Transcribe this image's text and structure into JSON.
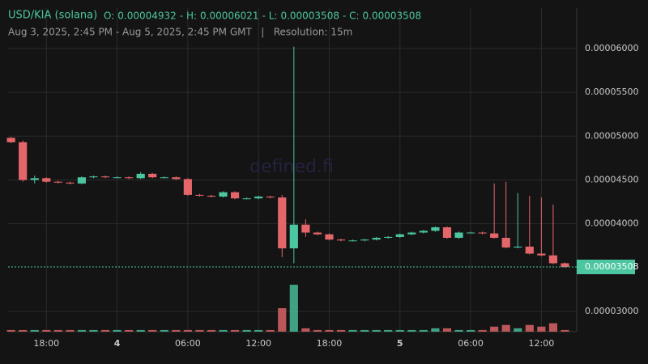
{
  "chart_data": {
    "type": "candlestick",
    "title": "USD/KIA (solana)",
    "ohlc": [
      {
        "label": "O:",
        "value": 4.932e-05
      },
      {
        "label": "- H:",
        "value": 6.021e-05
      },
      {
        "label": "- L:",
        "value": 3.508e-05
      },
      {
        "label": "- C:",
        "value": 3.508e-05
      }
    ],
    "subtitle": "Aug 3, 2025, 2:45 PM - Aug 5, 2025, 2:45 PM GMT   |   Resolution: 15m",
    "watermark": "defined.fi",
    "up_color": "#4bc6a0",
    "down_color": "#e5666a",
    "x": [
      15,
      16,
      17,
      18,
      19,
      20,
      21,
      22,
      23,
      24,
      25,
      26,
      27,
      28,
      29,
      30,
      31,
      32,
      33,
      34,
      35,
      36,
      37,
      38,
      39,
      40,
      41,
      42,
      43,
      44,
      45,
      46,
      47,
      48,
      49,
      50,
      51,
      52,
      53,
      54,
      55,
      56,
      57,
      58,
      59,
      60,
      61,
      62
    ],
    "open": [
      4.98e-05,
      4.93e-05,
      4.5e-05,
      4.52e-05,
      4.48e-05,
      4.47e-05,
      4.46e-05,
      4.53e-05,
      4.54e-05,
      4.53e-05,
      4.53e-05,
      4.52e-05,
      4.57e-05,
      4.53e-05,
      4.53e-05,
      4.51e-05,
      4.33e-05,
      4.32e-05,
      4.31e-05,
      4.36e-05,
      4.29e-05,
      4.29e-05,
      4.31e-05,
      4.3e-05,
      3.72e-05,
      3.99e-05,
      3.9e-05,
      3.88e-05,
      3.82e-05,
      3.81e-05,
      3.81e-05,
      3.82e-05,
      3.84e-05,
      3.85e-05,
      3.88e-05,
      3.9e-05,
      3.92e-05,
      3.96e-05,
      3.84e-05,
      3.9e-05,
      3.9e-05,
      3.89e-05,
      3.84e-05,
      3.73e-05,
      3.74e-05,
      3.66e-05,
      3.64e-05,
      3.55e-05
    ],
    "close": [
      4.93e-05,
      4.5e-05,
      4.52e-05,
      4.48e-05,
      4.47e-05,
      4.46e-05,
      4.53e-05,
      4.54e-05,
      4.53e-05,
      4.53e-05,
      4.52e-05,
      4.57e-05,
      4.53e-05,
      4.53e-05,
      4.51e-05,
      4.33e-05,
      4.32e-05,
      4.31e-05,
      4.36e-05,
      4.29e-05,
      4.29e-05,
      4.31e-05,
      4.3e-05,
      3.72e-05,
      3.99e-05,
      3.9e-05,
      3.88e-05,
      3.82e-05,
      3.81e-05,
      3.81e-05,
      3.82e-05,
      3.84e-05,
      3.85e-05,
      3.88e-05,
      3.9e-05,
      3.92e-05,
      3.96e-05,
      3.84e-05,
      3.9e-05,
      3.9e-05,
      3.89e-05,
      3.84e-05,
      3.73e-05,
      3.74e-05,
      3.66e-05,
      3.64e-05,
      3.55e-05,
      3.508e-05
    ],
    "high": [
      4.99e-05,
      4.95e-05,
      4.55e-05,
      4.53e-05,
      4.49e-05,
      4.48e-05,
      4.54e-05,
      4.55e-05,
      4.55e-05,
      4.54e-05,
      4.54e-05,
      4.59e-05,
      4.58e-05,
      4.54e-05,
      4.54e-05,
      4.52e-05,
      4.34e-05,
      4.33e-05,
      4.37e-05,
      4.37e-05,
      4.3e-05,
      4.32e-05,
      4.32e-05,
      4.33e-05,
      6.021e-05,
      4.05e-05,
      3.91e-05,
      3.89e-05,
      3.83e-05,
      3.82e-05,
      3.83e-05,
      3.85e-05,
      3.86e-05,
      3.89e-05,
      3.91e-05,
      3.93e-05,
      3.97e-05,
      3.97e-05,
      3.91e-05,
      3.91e-05,
      3.91e-05,
      4.46e-05,
      4.48e-05,
      4.35e-05,
      4.32e-05,
      4.3e-05,
      4.22e-05,
      3.56e-05
    ],
    "low": [
      4.92e-05,
      4.48e-05,
      4.46e-05,
      4.47e-05,
      4.46e-05,
      4.45e-05,
      4.45e-05,
      4.52e-05,
      4.52e-05,
      4.52e-05,
      4.51e-05,
      4.51e-05,
      4.52e-05,
      4.52e-05,
      4.5e-05,
      4.32e-05,
      4.31e-05,
      4.3e-05,
      4.3e-05,
      4.28e-05,
      4.28e-05,
      4.28e-05,
      4.29e-05,
      3.62e-05,
      3.55e-05,
      3.85e-05,
      3.87e-05,
      3.81e-05,
      3.8e-05,
      3.8e-05,
      3.8e-05,
      3.81e-05,
      3.83e-05,
      3.84e-05,
      3.87e-05,
      3.89e-05,
      3.91e-05,
      3.83e-05,
      3.83e-05,
      3.89e-05,
      3.88e-05,
      3.83e-05,
      3.72e-05,
      3.72e-05,
      3.65e-05,
      3.63e-05,
      3.54e-05,
      3.5e-05
    ],
    "volume": [
      1,
      1,
      1,
      1,
      1,
      1,
      1,
      1,
      1,
      1,
      1,
      1,
      1,
      1,
      1,
      1,
      1,
      1,
      1,
      1,
      1,
      1,
      1,
      14,
      28,
      2,
      1,
      1,
      1,
      1,
      1,
      1,
      1,
      1,
      1,
      1,
      2,
      2,
      1,
      1,
      1,
      3,
      4,
      2,
      4,
      3,
      5,
      1
    ],
    "xlim": [
      14.75,
      63
    ],
    "xticks": [
      {
        "value": 18,
        "label": "18:00"
      },
      {
        "value": 24,
        "label": "4"
      },
      {
        "value": 30,
        "label": "06:00"
      },
      {
        "value": 36,
        "label": "12:00"
      },
      {
        "value": 42,
        "label": "18:00"
      },
      {
        "value": 48,
        "label": "5"
      },
      {
        "value": 54,
        "label": "06:00"
      },
      {
        "value": 60,
        "label": "12:00"
      }
    ],
    "ylim": [
      2.77e-05,
      6.46e-05
    ],
    "yticks": [
      {
        "value": 3e-05,
        "label": "0.00003000"
      },
      {
        "value": 4e-05,
        "label": "0.00004000"
      },
      {
        "value": 4.5e-05,
        "label": "0.00004500"
      },
      {
        "value": 5e-05,
        "label": "0.00005000"
      },
      {
        "value": 5.5e-05,
        "label": "0.00005500"
      },
      {
        "value": 6e-05,
        "label": "0.00006000"
      }
    ],
    "last_price": 3.508e-05,
    "grid": true
  }
}
